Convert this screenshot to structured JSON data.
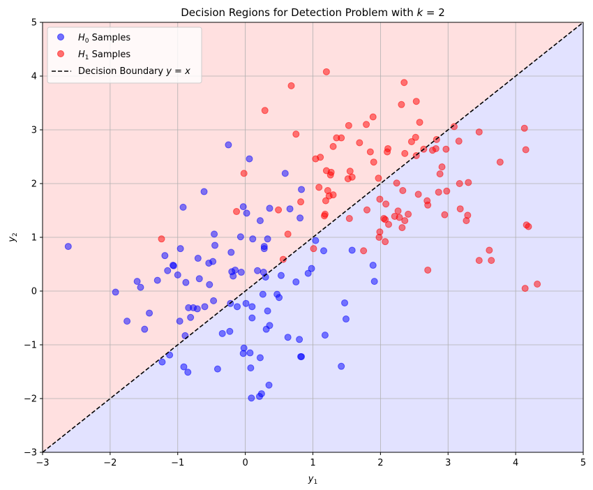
{
  "chart_data": {
    "type": "scatter",
    "title": "Decision Regions for Detection Problem with k = 2",
    "title_main": "Decision Regions for Detection Problem with ",
    "title_var": "k",
    "title_eq": " = 2",
    "xlabel": "y",
    "xlabel_sub": "1",
    "ylabel": "y",
    "ylabel_sub": "2",
    "xlim": [
      -3,
      5
    ],
    "ylim": [
      -3,
      5
    ],
    "xticks": [
      "−3",
      "−2",
      "−1",
      "0",
      "1",
      "2",
      "3",
      "4",
      "5"
    ],
    "yticks": [
      "−3",
      "−2",
      "−1",
      "0",
      "1",
      "2",
      "3",
      "4",
      "5"
    ],
    "grid": true,
    "legend_position": "top-left",
    "regions": [
      {
        "name": "H1 region (y2 > y1)",
        "color": "#ffe0e0"
      },
      {
        "name": "H0 region (y2 < y1)",
        "color": "#e2e2ff"
      }
    ],
    "decision_boundary": {
      "label_text": "Decision Boundary ",
      "label_math": "y = x",
      "line": [
        [
          -3,
          -3
        ],
        [
          5,
          5
        ]
      ],
      "color": "#000000",
      "style": "dashed"
    },
    "series": [
      {
        "name": "H0 Samples",
        "label_sub": "0",
        "color": "#0000ff",
        "points": [
          [
            -2.62,
            0.83
          ],
          [
            -1.92,
            -0.02
          ],
          [
            -1.75,
            -0.56
          ],
          [
            -1.6,
            0.18
          ],
          [
            -1.55,
            0.07
          ],
          [
            -1.49,
            -0.71
          ],
          [
            -1.42,
            -0.41
          ],
          [
            -1.3,
            0.2
          ],
          [
            -1.23,
            -1.32
          ],
          [
            -1.19,
            0.66
          ],
          [
            -1.15,
            0.38
          ],
          [
            -1.12,
            -1.19
          ],
          [
            -1.07,
            0.48
          ],
          [
            -1.06,
            0.47
          ],
          [
            -1.0,
            0.3
          ],
          [
            -0.97,
            -0.56
          ],
          [
            -0.96,
            0.79
          ],
          [
            -0.92,
            1.56
          ],
          [
            -0.91,
            -1.41
          ],
          [
            -0.89,
            -0.83
          ],
          [
            -0.88,
            0.16
          ],
          [
            -0.85,
            -1.51
          ],
          [
            -0.84,
            -0.31
          ],
          [
            -0.81,
            -0.49
          ],
          [
            -0.77,
            -0.31
          ],
          [
            -0.71,
            -0.33
          ],
          [
            -0.7,
            0.61
          ],
          [
            -0.68,
            0.23
          ],
          [
            -0.61,
            1.85
          ],
          [
            -0.6,
            -0.29
          ],
          [
            -0.54,
            0.52
          ],
          [
            -0.53,
            0.12
          ],
          [
            -0.48,
            0.55
          ],
          [
            -0.47,
            -0.18
          ],
          [
            -0.46,
            1.06
          ],
          [
            -0.45,
            0.85
          ],
          [
            -0.41,
            -1.45
          ],
          [
            -0.34,
            -0.79
          ],
          [
            -0.25,
            2.72
          ],
          [
            -0.23,
            -0.75
          ],
          [
            -0.22,
            -0.23
          ],
          [
            -0.21,
            0.72
          ],
          [
            -0.2,
            0.36
          ],
          [
            -0.18,
            0.28
          ],
          [
            -0.15,
            0.39
          ],
          [
            -0.12,
            -0.29
          ],
          [
            -0.07,
            1.01
          ],
          [
            -0.06,
            0.35
          ],
          [
            -0.03,
            1.57
          ],
          [
            -0.02,
            -1.06
          ],
          [
            -0.03,
            -1.16
          ],
          [
            0.01,
            -0.23
          ],
          [
            0.02,
            1.45
          ],
          [
            0.06,
            2.46
          ],
          [
            0.07,
            -1.15
          ],
          [
            0.08,
            -1.43
          ],
          [
            0.09,
            -1.99
          ],
          [
            0.1,
            -0.29
          ],
          [
            0.1,
            -0.5
          ],
          [
            0.11,
            0.97
          ],
          [
            0.18,
            0.38
          ],
          [
            0.21,
            -1.96
          ],
          [
            0.22,
            -1.24
          ],
          [
            0.22,
            1.31
          ],
          [
            0.24,
            -1.91
          ],
          [
            0.26,
            -0.06
          ],
          [
            0.27,
            0.35
          ],
          [
            0.28,
            0.79
          ],
          [
            0.28,
            0.83
          ],
          [
            0.3,
            0.26
          ],
          [
            0.31,
            -0.71
          ],
          [
            0.33,
            -0.37
          ],
          [
            0.33,
            0.97
          ],
          [
            0.35,
            -1.75
          ],
          [
            0.36,
            1.54
          ],
          [
            0.36,
            -0.64
          ],
          [
            0.47,
            -0.06
          ],
          [
            0.5,
            -0.12
          ],
          [
            0.53,
            0.29
          ],
          [
            0.59,
            2.19
          ],
          [
            0.63,
            -0.86
          ],
          [
            0.66,
            1.53
          ],
          [
            0.75,
            0.17
          ],
          [
            0.8,
            -0.9
          ],
          [
            0.81,
            1.36
          ],
          [
            0.82,
            -1.22
          ],
          [
            0.83,
            -1.22
          ],
          [
            0.83,
            1.89
          ],
          [
            0.93,
            0.33
          ],
          [
            0.98,
            0.42
          ],
          [
            1.04,
            0.94
          ],
          [
            1.16,
            0.75
          ],
          [
            1.18,
            -0.82
          ],
          [
            1.42,
            -1.4
          ],
          [
            1.47,
            -0.22
          ],
          [
            1.49,
            -0.52
          ],
          [
            1.58,
            0.76
          ],
          [
            1.89,
            0.48
          ],
          [
            1.91,
            0.18
          ]
        ]
      },
      {
        "name": "H1 Samples",
        "label_sub": "1",
        "color": "#ff0000",
        "points": [
          [
            -1.24,
            0.97
          ],
          [
            -0.13,
            1.48
          ],
          [
            -0.02,
            2.19
          ],
          [
            0.29,
            3.36
          ],
          [
            0.49,
            1.51
          ],
          [
            0.56,
            0.59
          ],
          [
            0.63,
            1.06
          ],
          [
            0.68,
            3.82
          ],
          [
            0.75,
            2.92
          ],
          [
            0.82,
            1.66
          ],
          [
            1.01,
            0.79
          ],
          [
            1.04,
            2.46
          ],
          [
            1.09,
            1.93
          ],
          [
            1.11,
            2.49
          ],
          [
            1.17,
            1.4
          ],
          [
            1.18,
            1.43
          ],
          [
            1.19,
            1.68
          ],
          [
            1.2,
            2.24
          ],
          [
            1.2,
            4.08
          ],
          [
            1.22,
            1.87
          ],
          [
            1.24,
            1.77
          ],
          [
            1.26,
            2.16
          ],
          [
            1.27,
            2.21
          ],
          [
            1.3,
            1.79
          ],
          [
            1.3,
            2.69
          ],
          [
            1.35,
            2.85
          ],
          [
            1.42,
            2.85
          ],
          [
            1.52,
            2.09
          ],
          [
            1.53,
            3.08
          ],
          [
            1.54,
            1.35
          ],
          [
            1.55,
            2.23
          ],
          [
            1.58,
            2.12
          ],
          [
            1.69,
            2.76
          ],
          [
            1.75,
            0.75
          ],
          [
            1.79,
            3.1
          ],
          [
            1.8,
            1.51
          ],
          [
            1.85,
            2.59
          ],
          [
            1.89,
            3.24
          ],
          [
            1.9,
            2.4
          ],
          [
            1.97,
            2.1
          ],
          [
            1.98,
            1.0
          ],
          [
            1.99,
            1.71
          ],
          [
            1.99,
            1.1
          ],
          [
            2.05,
            1.35
          ],
          [
            2.07,
            0.92
          ],
          [
            2.07,
            1.33
          ],
          [
            2.08,
            1.62
          ],
          [
            2.1,
            2.59
          ],
          [
            2.11,
            2.65
          ],
          [
            2.12,
            1.24
          ],
          [
            2.21,
            1.39
          ],
          [
            2.24,
            2.01
          ],
          [
            2.26,
            1.49
          ],
          [
            2.28,
            1.37
          ],
          [
            2.31,
            3.47
          ],
          [
            2.32,
            1.18
          ],
          [
            2.33,
            1.87
          ],
          [
            2.35,
            3.88
          ],
          [
            2.36,
            1.31
          ],
          [
            2.36,
            2.56
          ],
          [
            2.41,
            1.43
          ],
          [
            2.46,
            2.78
          ],
          [
            2.52,
            2.86
          ],
          [
            2.53,
            3.53
          ],
          [
            2.53,
            2.52
          ],
          [
            2.56,
            1.8
          ],
          [
            2.58,
            3.14
          ],
          [
            2.64,
            2.64
          ],
          [
            2.69,
            1.68
          ],
          [
            2.7,
            1.6
          ],
          [
            2.7,
            0.39
          ],
          [
            2.77,
            2.62
          ],
          [
            2.82,
            2.65
          ],
          [
            2.83,
            2.82
          ],
          [
            2.86,
            1.84
          ],
          [
            2.88,
            2.18
          ],
          [
            2.91,
            2.31
          ],
          [
            2.95,
            1.42
          ],
          [
            2.97,
            2.64
          ],
          [
            2.98,
            1.86
          ],
          [
            3.09,
            3.06
          ],
          [
            3.16,
            2.79
          ],
          [
            3.17,
            2.0
          ],
          [
            3.18,
            1.53
          ],
          [
            3.27,
            1.31
          ],
          [
            3.29,
            1.41
          ],
          [
            3.3,
            2.02
          ],
          [
            3.46,
            0.57
          ],
          [
            3.46,
            2.96
          ],
          [
            3.61,
            0.76
          ],
          [
            3.64,
            0.57
          ],
          [
            3.77,
            2.4
          ],
          [
            4.13,
            3.03
          ],
          [
            4.14,
            0.05
          ],
          [
            4.15,
            2.63
          ],
          [
            4.16,
            1.23
          ],
          [
            4.19,
            1.2
          ],
          [
            4.32,
            0.13
          ]
        ]
      }
    ]
  }
}
